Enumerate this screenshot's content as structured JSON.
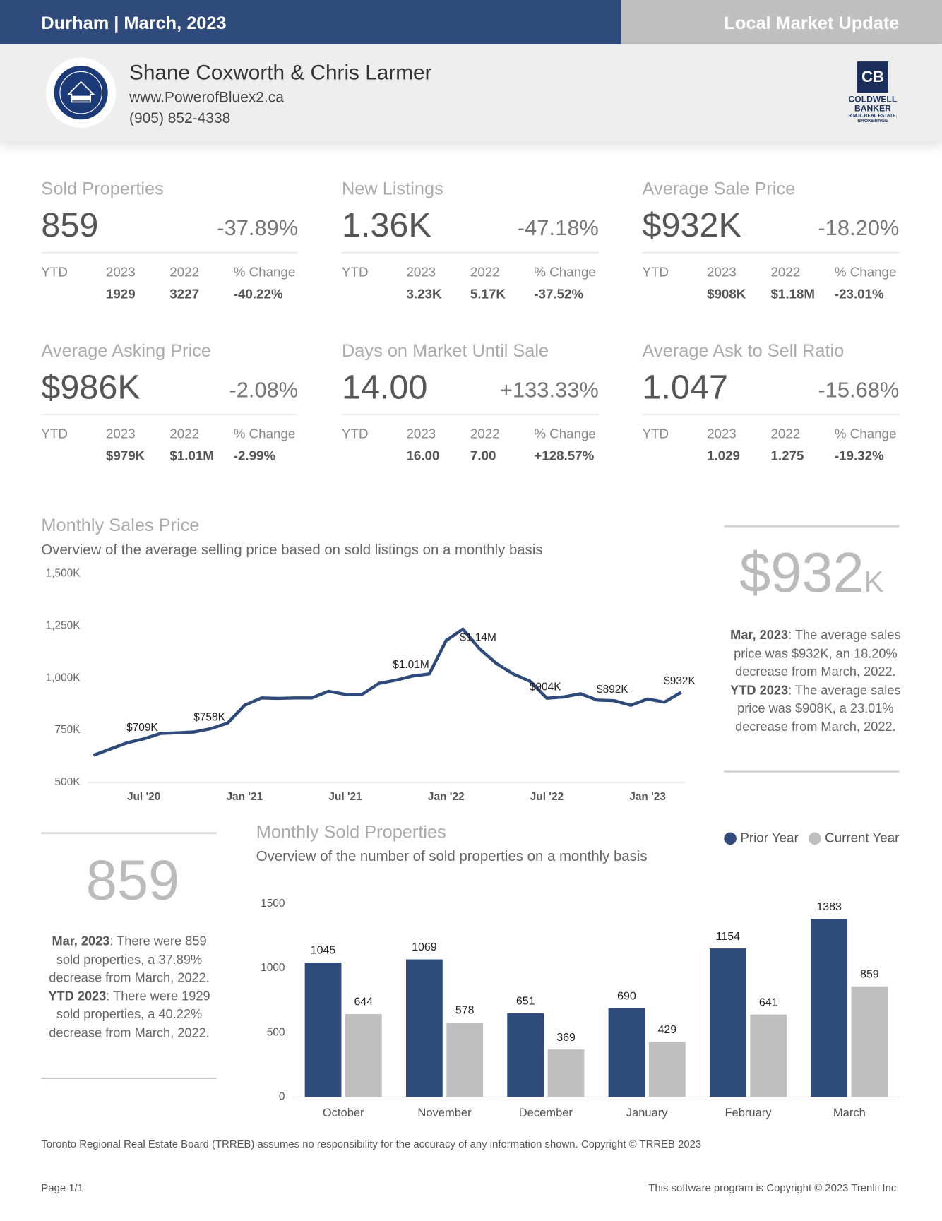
{
  "header": {
    "left": "Durham | March, 2023",
    "right": "Local Market Update"
  },
  "agent": {
    "name": "Shane Coxworth & Chris Larmer",
    "website": "www.PowerofBluex2.ca",
    "phone": "(905) 852-4338"
  },
  "brand": {
    "line1": "COLDWELL",
    "line2": "BANKER",
    "line3": "R.M.R. REAL ESTATE,",
    "line4": "BROKERAGE"
  },
  "metric_columns": [
    "YTD",
    "2023",
    "2022",
    "% Change"
  ],
  "metrics": [
    {
      "title": "Sold Properties",
      "value": "859",
      "change": "-37.89%",
      "ytd": [
        "1929",
        "3227",
        "-40.22%"
      ]
    },
    {
      "title": "New Listings",
      "value": "1.36K",
      "change": "-47.18%",
      "ytd": [
        "3.23K",
        "5.17K",
        "-37.52%"
      ]
    },
    {
      "title": "Average Sale Price",
      "value": "$932K",
      "change": "-18.20%",
      "ytd": [
        "$908K",
        "$1.18M",
        "-23.01%"
      ]
    },
    {
      "title": "Average Asking Price",
      "value": "$986K",
      "change": "-2.08%",
      "ytd": [
        "$979K",
        "$1.01M",
        "-2.99%"
      ]
    },
    {
      "title": "Days on Market Until Sale",
      "value": "14.00",
      "change": "+133.33%",
      "ytd": [
        "16.00",
        "7.00",
        "+128.57%"
      ]
    },
    {
      "title": "Average Ask to Sell Ratio",
      "value": "1.047",
      "change": "-15.68%",
      "ytd": [
        "1.029",
        "1.275",
        "-19.32%"
      ]
    }
  ],
  "price_panel": {
    "value": "$932",
    "unit": "K",
    "notes": [
      {
        "lead": "Mar, 2023",
        "text": ": The average sales price was $932K, an 18.20% decrease from March, 2022."
      },
      {
        "lead": "YTD 2023",
        "text": ": The average sales price was $908K, a 23.01% decrease from March, 2022."
      }
    ]
  },
  "sold_panel": {
    "value": "859",
    "notes": [
      {
        "lead": "Mar, 2023",
        "text": ": There were 859 sold properties, a 37.89% decrease from March, 2022."
      },
      {
        "lead": "YTD 2023",
        "text": ": There were 1929 sold properties, a 40.22% decrease from March, 2022."
      }
    ]
  },
  "chart_data": [
    {
      "type": "line",
      "title": "Monthly Sales Price",
      "subtitle": "Overview of the average selling price based on sold listings on a monthly basis",
      "x": [
        "2020-04",
        "2020-05",
        "2020-06",
        "2020-07",
        "2020-08",
        "2020-09",
        "2020-10",
        "2020-11",
        "2020-12",
        "2021-01",
        "2021-02",
        "2021-03",
        "2021-04",
        "2021-05",
        "2021-06",
        "2021-07",
        "2021-08",
        "2021-09",
        "2021-10",
        "2021-11",
        "2021-12",
        "2022-01",
        "2022-02",
        "2022-03",
        "2022-04",
        "2022-05",
        "2022-06",
        "2022-07",
        "2022-08",
        "2022-09",
        "2022-10",
        "2022-11",
        "2022-12",
        "2023-01",
        "2023-02",
        "2023-03"
      ],
      "values": [
        630,
        660,
        690,
        709,
        735,
        738,
        742,
        758,
        785,
        870,
        905,
        903,
        905,
        905,
        937,
        922,
        922,
        975,
        990,
        1010,
        1020,
        1180,
        1235,
        1140,
        1070,
        1020,
        985,
        904,
        910,
        925,
        895,
        892,
        870,
        900,
        885,
        932
      ],
      "value_labels": [
        null,
        null,
        null,
        "$709K",
        null,
        null,
        null,
        "$758K",
        null,
        null,
        null,
        null,
        null,
        null,
        null,
        null,
        null,
        null,
        null,
        "$1.01M",
        null,
        null,
        null,
        "$1.14M",
        null,
        null,
        null,
        "$904K",
        null,
        null,
        null,
        "$892K",
        null,
        null,
        null,
        "$932K"
      ],
      "color": "#2e4a7a",
      "ylim": [
        500,
        1500
      ],
      "yticks": [
        {
          "value": 500,
          "label": "500K"
        },
        {
          "value": 750,
          "label": "750K"
        },
        {
          "value": 1000,
          "label": "1,000K"
        },
        {
          "value": 1250,
          "label": "1,250K"
        },
        {
          "value": 1500,
          "label": "1,500K"
        }
      ],
      "xticks": [
        {
          "value": "2020-07",
          "label": "Jul '20"
        },
        {
          "value": "2021-01",
          "label": "Jan '21"
        },
        {
          "value": "2021-07",
          "label": "Jul '21"
        },
        {
          "value": "2022-01",
          "label": "Jan '22"
        },
        {
          "value": "2022-07",
          "label": "Jul '22"
        },
        {
          "value": "2023-01",
          "label": "Jan '23"
        }
      ]
    },
    {
      "type": "bar",
      "title": "Monthly Sold Properties",
      "subtitle": "Overview of the number of sold properties on a monthly basis",
      "categories": [
        "October",
        "November",
        "December",
        "January",
        "February",
        "March"
      ],
      "series": [
        {
          "name": "Prior Year",
          "color": "#2f4b7c",
          "values": [
            1045,
            1069,
            651,
            690,
            1154,
            1383
          ]
        },
        {
          "name": "Current Year",
          "color": "#bfbfbf",
          "values": [
            644,
            578,
            369,
            429,
            641,
            859
          ]
        }
      ],
      "ylim": [
        0,
        1500
      ],
      "yticks": [
        0,
        500,
        1000,
        1500
      ],
      "legend": "top-right"
    }
  ],
  "footer": {
    "disclaimer": "Toronto Regional Real Estate Board (TRREB) assumes no responsibility for the accuracy of any information shown. Copyright © TRREB 2023",
    "page": "Page 1/1",
    "copyright": "This software program is Copyright © 2023 Trenlii Inc."
  }
}
